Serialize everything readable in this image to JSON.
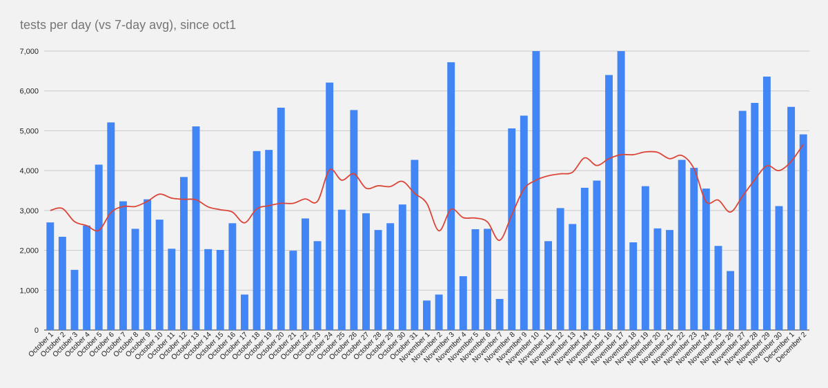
{
  "chart_data": {
    "type": "bar",
    "title": "tests per day (vs 7-day avg), since oct1",
    "xlabel": "",
    "ylabel": "",
    "ylim": [
      0,
      7000
    ],
    "yticks": [
      0,
      1000,
      2000,
      3000,
      4000,
      5000,
      6000,
      7000
    ],
    "ytick_labels": [
      "0",
      "1,000",
      "2,000",
      "3,000",
      "4,000",
      "5,000",
      "6,000",
      "7,000"
    ],
    "grid": true,
    "legend": "none",
    "colors": {
      "bars": "#4285f4",
      "line": "#db4437",
      "grid": "#c8c8c8",
      "background": "#f2f2f2"
    },
    "categories": [
      "October 1",
      "October 2",
      "October 3",
      "October 4",
      "October 5",
      "October 6",
      "October 7",
      "October 8",
      "October 9",
      "October 10",
      "October 11",
      "October 12",
      "October 13",
      "October 14",
      "October 15",
      "October 16",
      "October 17",
      "October 18",
      "October 19",
      "October 20",
      "October 21",
      "October 22",
      "October 23",
      "October 24",
      "October 25",
      "October 26",
      "October 27",
      "October 28",
      "October 29",
      "October 30",
      "October 31",
      "November 1",
      "November 2",
      "November 3",
      "November 4",
      "November 5",
      "November 6",
      "November 7",
      "November 8",
      "November 9",
      "November 10",
      "November 11",
      "November 12",
      "November 13",
      "November 14",
      "November 15",
      "November 16",
      "November 17",
      "November 18",
      "November 19",
      "November 20",
      "November 21",
      "November 22",
      "November 23",
      "November 24",
      "November 25",
      "November 26",
      "November 27",
      "November 28",
      "November 29",
      "November 30",
      "December 1",
      "December 2"
    ],
    "series": [
      {
        "type": "bar",
        "values": [
          2700,
          2340,
          1510,
          2620,
          4150,
          5210,
          3230,
          2540,
          3280,
          2770,
          2040,
          3840,
          5110,
          2030,
          2010,
          2680,
          890,
          4490,
          4520,
          5580,
          1990,
          2800,
          2230,
          6210,
          3020,
          5520,
          2930,
          2510,
          2680,
          3150,
          4270,
          740,
          890,
          6720,
          1350,
          2530,
          2540,
          780,
          5060,
          5380,
          7000,
          2230,
          3060,
          2660,
          3570,
          3750,
          6400,
          7000,
          2200,
          3610,
          2550,
          2510,
          4270,
          4070,
          3550,
          2110,
          1480,
          5500,
          5700,
          6360,
          3110,
          5600,
          4910
        ]
      },
      {
        "type": "line",
        "values": [
          3000,
          3050,
          2720,
          2620,
          2500,
          2950,
          3100,
          3100,
          3230,
          3410,
          3310,
          3280,
          3270,
          3090,
          3020,
          2960,
          2690,
          3040,
          3120,
          3180,
          3180,
          3290,
          3230,
          4020,
          3760,
          3920,
          3560,
          3620,
          3600,
          3730,
          3430,
          3180,
          2490,
          3030,
          2820,
          2810,
          2710,
          2250,
          2890,
          3540,
          3760,
          3870,
          3920,
          3960,
          4320,
          4130,
          4300,
          4400,
          4400,
          4470,
          4460,
          4300,
          4380,
          4050,
          3220,
          3260,
          2960,
          3360,
          3770,
          4120,
          4000,
          4230,
          4660
        ]
      }
    ]
  }
}
